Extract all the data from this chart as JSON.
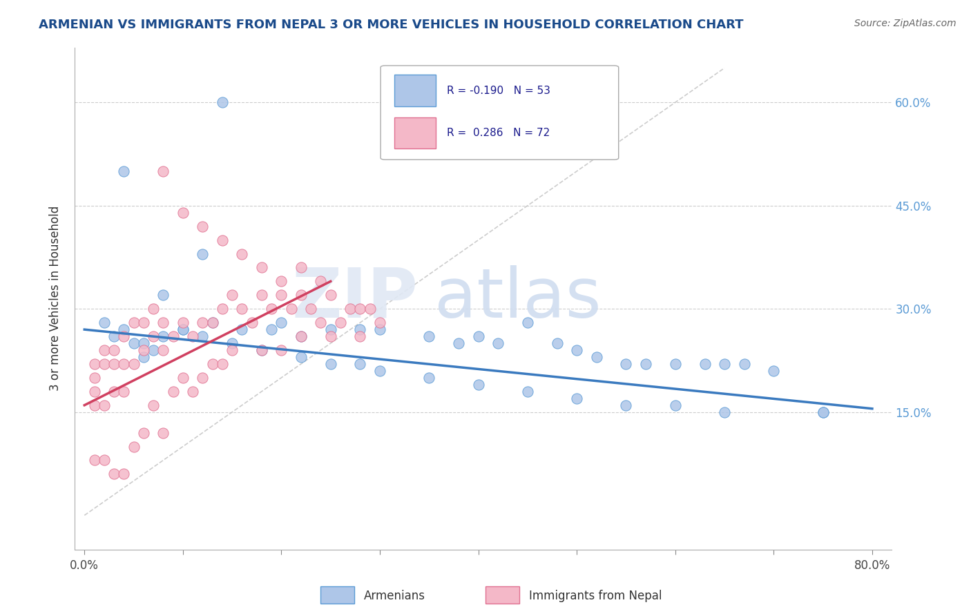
{
  "title": "ARMENIAN VS IMMIGRANTS FROM NEPAL 3 OR MORE VEHICLES IN HOUSEHOLD CORRELATION CHART",
  "source": "Source: ZipAtlas.com",
  "ylabel": "3 or more Vehicles in Household",
  "xlim": [
    -0.01,
    0.82
  ],
  "ylim": [
    -0.05,
    0.68
  ],
  "xticks": [
    0.0,
    0.1,
    0.2,
    0.3,
    0.4,
    0.5,
    0.6,
    0.7,
    0.8
  ],
  "xtick_labels_show": {
    "0.0": "0.0%",
    "0.8": "80.0%"
  },
  "ytick_positions": [
    0.15,
    0.3,
    0.45,
    0.6
  ],
  "ytick_labels": [
    "15.0%",
    "30.0%",
    "45.0%",
    "60.0%"
  ],
  "armenian_R": -0.19,
  "armenian_N": 53,
  "nepal_R": 0.286,
  "nepal_N": 72,
  "armenian_color": "#aec6e8",
  "armenian_edge_color": "#5b9bd5",
  "nepal_color": "#f4b8c8",
  "nepal_edge_color": "#e07090",
  "armenian_line_color": "#3a7abf",
  "nepal_line_color": "#d04060",
  "diagonal_color": "#c8c8c8",
  "legend_label_armenian": "Armenians",
  "legend_label_nepal": "Immigrants from Nepal",
  "armenian_x": [
    0.14,
    0.04,
    0.12,
    0.02,
    0.04,
    0.03,
    0.05,
    0.07,
    0.06,
    0.08,
    0.1,
    0.13,
    0.16,
    0.19,
    0.2,
    0.22,
    0.25,
    0.28,
    0.3,
    0.35,
    0.38,
    0.4,
    0.42,
    0.45,
    0.48,
    0.5,
    0.52,
    0.55,
    0.57,
    0.6,
    0.63,
    0.65,
    0.67,
    0.7,
    0.75,
    0.06,
    0.08,
    0.1,
    0.12,
    0.15,
    0.18,
    0.22,
    0.25,
    0.28,
    0.3,
    0.35,
    0.4,
    0.45,
    0.5,
    0.55,
    0.6,
    0.65,
    0.75
  ],
  "armenian_y": [
    0.6,
    0.5,
    0.38,
    0.28,
    0.27,
    0.26,
    0.25,
    0.24,
    0.23,
    0.32,
    0.27,
    0.28,
    0.27,
    0.27,
    0.28,
    0.26,
    0.27,
    0.27,
    0.27,
    0.26,
    0.25,
    0.26,
    0.25,
    0.28,
    0.25,
    0.24,
    0.23,
    0.22,
    0.22,
    0.22,
    0.22,
    0.22,
    0.22,
    0.21,
    0.15,
    0.25,
    0.26,
    0.27,
    0.26,
    0.25,
    0.24,
    0.23,
    0.22,
    0.22,
    0.21,
    0.2,
    0.19,
    0.18,
    0.17,
    0.16,
    0.16,
    0.15,
    0.15
  ],
  "nepal_x": [
    0.01,
    0.01,
    0.01,
    0.01,
    0.01,
    0.02,
    0.02,
    0.02,
    0.02,
    0.03,
    0.03,
    0.03,
    0.03,
    0.04,
    0.04,
    0.04,
    0.04,
    0.05,
    0.05,
    0.05,
    0.06,
    0.06,
    0.06,
    0.07,
    0.07,
    0.07,
    0.08,
    0.08,
    0.08,
    0.09,
    0.09,
    0.1,
    0.1,
    0.11,
    0.11,
    0.12,
    0.12,
    0.13,
    0.13,
    0.14,
    0.14,
    0.15,
    0.15,
    0.16,
    0.17,
    0.18,
    0.18,
    0.19,
    0.2,
    0.2,
    0.21,
    0.22,
    0.22,
    0.23,
    0.24,
    0.25,
    0.25,
    0.26,
    0.27,
    0.28,
    0.28,
    0.29,
    0.3,
    0.08,
    0.1,
    0.12,
    0.14,
    0.16,
    0.18,
    0.2,
    0.22,
    0.24
  ],
  "nepal_y": [
    0.22,
    0.2,
    0.18,
    0.16,
    0.08,
    0.24,
    0.22,
    0.16,
    0.08,
    0.24,
    0.22,
    0.18,
    0.06,
    0.26,
    0.22,
    0.18,
    0.06,
    0.28,
    0.22,
    0.1,
    0.28,
    0.24,
    0.12,
    0.3,
    0.26,
    0.16,
    0.28,
    0.24,
    0.12,
    0.26,
    0.18,
    0.28,
    0.2,
    0.26,
    0.18,
    0.28,
    0.2,
    0.28,
    0.22,
    0.3,
    0.22,
    0.32,
    0.24,
    0.3,
    0.28,
    0.32,
    0.24,
    0.3,
    0.32,
    0.24,
    0.3,
    0.32,
    0.26,
    0.3,
    0.28,
    0.32,
    0.26,
    0.28,
    0.3,
    0.3,
    0.26,
    0.3,
    0.28,
    0.5,
    0.44,
    0.42,
    0.4,
    0.38,
    0.36,
    0.34,
    0.36,
    0.34
  ]
}
